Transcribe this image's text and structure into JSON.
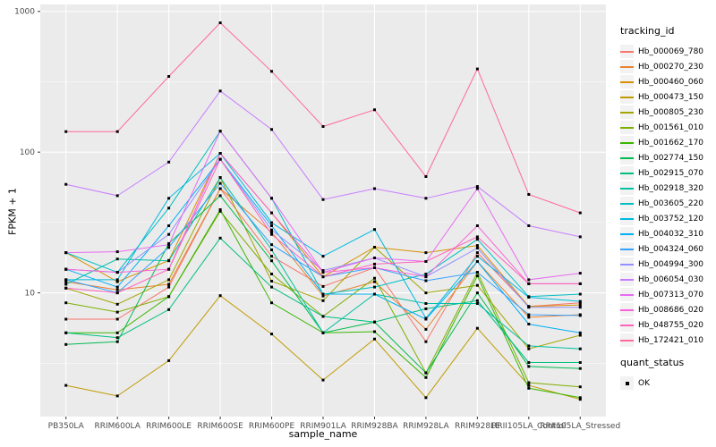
{
  "chart_data": {
    "type": "line",
    "title": "",
    "xlabel": "sample_name",
    "ylabel": "FPKM + 1",
    "y_scale": "log10",
    "ylim": [
      1.32,
      1120
    ],
    "y_ticks": [
      10,
      100,
      1000
    ],
    "y_minor_ticks": [
      3.162,
      31.62,
      316.2
    ],
    "grid": true,
    "legend_position": "right",
    "point_marker": {
      "shape": "square",
      "color": "#000000",
      "size": 3
    },
    "colors": {
      "panel_bg": "#EBEBEB",
      "grid_major": "#FFFFFF",
      "grid_minor": "#FFFFFF",
      "axis_text": "#4D4D4D",
      "tick_mark": "#333333",
      "legend_key_bg": "#F2F2F2"
    },
    "categories": [
      "PB350LA",
      "RRIM600LA",
      "RRIM600LE",
      "RRIM600SE",
      "RRIM600PE",
      "RRIM901LA",
      "RRIM928BA",
      "RRIM928LA",
      "RRIM928LE",
      "RRII105LA_Control",
      "RRII105LA_Stressed"
    ],
    "series": [
      {
        "name": "Hb_000069_780",
        "color": "#F8766D",
        "values": [
          6.5,
          6.5,
          11,
          55,
          18.2,
          11.1,
          15.1,
          4.5,
          19.3,
          8.0,
          8.5
        ]
      },
      {
        "name": "Hb_000270_230",
        "color": "#EA8331",
        "values": [
          12,
          10.5,
          11.5,
          55,
          27,
          9.5,
          12,
          5.5,
          16.7,
          6.7,
          7.0
        ]
      },
      {
        "name": "Hb_000460_060",
        "color": "#D89000",
        "values": [
          19.3,
          12,
          17,
          98,
          37,
          13,
          21.1,
          19.3,
          21.7,
          8.0,
          8.2
        ]
      },
      {
        "name": "Hb_000473_150",
        "color": "#C09B00",
        "values": [
          2.2,
          1.85,
          3.3,
          9.55,
          5.1,
          2.4,
          4.7,
          1.8,
          5.6,
          2.2,
          1.75
        ]
      },
      {
        "name": "Hb_000805_230",
        "color": "#A3A500",
        "values": [
          10.8,
          8.3,
          12.4,
          66,
          12.1,
          8.8,
          21.1,
          10,
          11.3,
          4.0,
          5.0
        ]
      },
      {
        "name": "Hb_001561_010",
        "color": "#7CAE00",
        "values": [
          8.5,
          7.3,
          9.4,
          38,
          13.6,
          6.8,
          12.7,
          2.7,
          14,
          2.3,
          2.15
        ]
      },
      {
        "name": "Hb_001662_170",
        "color": "#39B600",
        "values": [
          5.2,
          5.2,
          9.4,
          39,
          8.5,
          5.2,
          5.3,
          2.5,
          13.2,
          2.1,
          1.8
        ]
      },
      {
        "name": "Hb_002774_150",
        "color": "#00BB4E",
        "values": [
          4.3,
          4.5,
          22.4,
          49,
          16.9,
          5.2,
          6.2,
          2.7,
          10,
          3.0,
          2.9
        ]
      },
      {
        "name": "Hb_002915_070",
        "color": "#00BF7D",
        "values": [
          5.2,
          4.8,
          7.6,
          24.5,
          11,
          6.8,
          6.2,
          7.7,
          8.8,
          3.2,
          3.2
        ]
      },
      {
        "name": "Hb_002918_320",
        "color": "#00C1A3",
        "values": [
          11.5,
          17.4,
          16.9,
          66,
          20.2,
          5.2,
          9.8,
          8.4,
          8.4,
          4.2,
          4.0
        ]
      },
      {
        "name": "Hb_003605_220",
        "color": "#00BFC4",
        "values": [
          19.3,
          14,
          40,
          141,
          47,
          9.8,
          11,
          13.6,
          24,
          9.4,
          9.8
        ]
      },
      {
        "name": "Hb_003752_120",
        "color": "#00BAE0",
        "values": [
          12.4,
          12.4,
          47,
          98,
          31.5,
          18.2,
          28.2,
          6.6,
          18.2,
          9.3,
          8.7
        ]
      },
      {
        "name": "Hb_004032_310",
        "color": "#00B0F6",
        "values": [
          14.7,
          11,
          30,
          89,
          30,
          9.8,
          9.8,
          6.5,
          16.7,
          6.0,
          5.2
        ]
      },
      {
        "name": "Hb_004324_060",
        "color": "#35A2FF",
        "values": [
          12.4,
          10,
          21,
          60,
          22,
          13,
          15.1,
          12.2,
          14,
          7.0,
          6.9
        ]
      },
      {
        "name": "Hb_004994_300",
        "color": "#9590FF",
        "values": [
          14.7,
          14,
          26,
          89,
          28,
          14.4,
          17.7,
          13,
          20.8,
          7.9,
          7.9
        ]
      },
      {
        "name": "Hb_006054_030",
        "color": "#C77CFF",
        "values": [
          59,
          49,
          85,
          272,
          145,
          46,
          55,
          47,
          57,
          30,
          25
        ]
      },
      {
        "name": "Hb_007313_070",
        "color": "#E76BF3",
        "values": [
          19.3,
          19.6,
          22,
          141,
          47,
          14,
          17.7,
          16.7,
          55,
          12.4,
          13.8
        ]
      },
      {
        "name": "Hb_008686_020",
        "color": "#FA62DB",
        "values": [
          14.7,
          14,
          14.7,
          98,
          37,
          14,
          15.1,
          13,
          30,
          11.6,
          11.6
        ]
      },
      {
        "name": "Hb_048755_020",
        "color": "#FF62BC",
        "values": [
          10.8,
          10,
          14.7,
          89,
          26,
          13,
          16,
          16.7,
          25,
          11.6,
          11.6
        ]
      },
      {
        "name": "Hb_172421_010",
        "color": "#FF6A98",
        "values": [
          140,
          140,
          345,
          830,
          375,
          152,
          200,
          67,
          390,
          50,
          37
        ]
      }
    ]
  },
  "legend": {
    "tracking_title": "tracking_id",
    "quant_title": "quant_status",
    "quant_items": [
      {
        "label": "OK"
      }
    ]
  }
}
